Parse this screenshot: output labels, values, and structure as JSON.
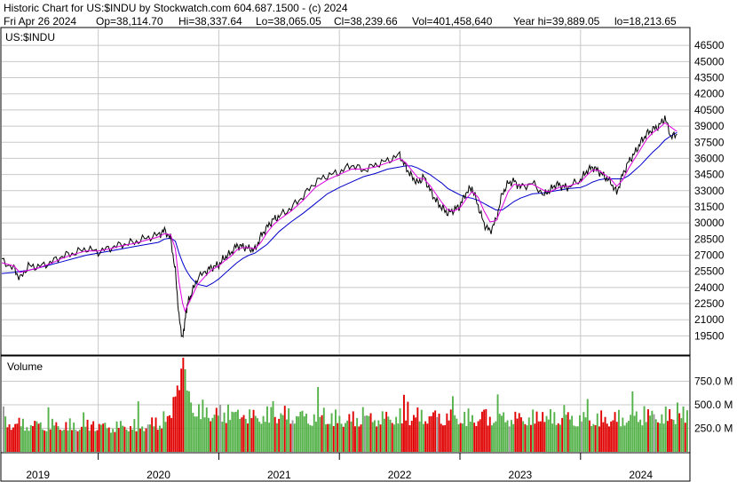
{
  "header": {
    "line1": "Historic Chart for US:$INDU by Stockwatch.com 604.687.1500 - (c) 2024",
    "line2_parts": [
      "Fri Apr 26 2024",
      "Op=38,114.70",
      "Hi=38,337.64",
      "Lo=38,065.05",
      "Cl=38,239.66",
      "Vol=401,458,640",
      "Year hi=39,889.05",
      "lo=18,213.65"
    ]
  },
  "colors": {
    "price": "#000000",
    "ma_short": "#e000e0",
    "ma_long": "#0000cc",
    "vol_up": "#55b24a",
    "vol_down": "#e00000",
    "vol_neutral": "#999999",
    "grid": "#c8c8c8"
  },
  "chart_data": [
    {
      "type": "line",
      "panel": "price",
      "label": "US:$INDU",
      "x_unit": "year",
      "xlim": [
        2018.7,
        2024.4
      ],
      "ylim": [
        17800,
        48000
      ],
      "y_ticks": [
        19500,
        21000,
        22500,
        24000,
        25500,
        27000,
        28500,
        30000,
        31500,
        33000,
        34500,
        36000,
        37500,
        39000,
        40500,
        42000,
        43500,
        45000,
        46500
      ],
      "x": [
        2018.7,
        2018.8,
        2018.85,
        2018.92,
        2019.0,
        2019.1,
        2019.2,
        2019.3,
        2019.4,
        2019.5,
        2019.6,
        2019.7,
        2019.8,
        2019.9,
        2020.0,
        2020.05,
        2020.1,
        2020.14,
        2020.17,
        2020.2,
        2020.22,
        2020.24,
        2020.27,
        2020.32,
        2020.4,
        2020.45,
        2020.5,
        2020.55,
        2020.6,
        2020.65,
        2020.7,
        2020.75,
        2020.8,
        2020.85,
        2020.9,
        2020.95,
        2021.0,
        2021.1,
        2021.2,
        2021.3,
        2021.4,
        2021.5,
        2021.6,
        2021.7,
        2021.8,
        2021.9,
        2022.0,
        2022.05,
        2022.1,
        2022.15,
        2022.2,
        2022.25,
        2022.3,
        2022.35,
        2022.4,
        2022.45,
        2022.5,
        2022.55,
        2022.6,
        2022.65,
        2022.7,
        2022.75,
        2022.8,
        2022.85,
        2022.9,
        2022.95,
        2023.0,
        2023.1,
        2023.2,
        2023.25,
        2023.3,
        2023.35,
        2023.4,
        2023.5,
        2023.55,
        2023.6,
        2023.65,
        2023.7,
        2023.75,
        2023.8,
        2023.85,
        2023.9,
        2023.95,
        2024.0,
        2024.05,
        2024.1,
        2024.15,
        2024.2,
        2024.25,
        2024.3
      ],
      "series": [
        {
          "key": "price",
          "values": [
            26500,
            25800,
            24800,
            26000,
            25900,
            26300,
            26900,
            27200,
            27600,
            27300,
            27700,
            28000,
            28200,
            28600,
            28900,
            29300,
            28600,
            25500,
            21200,
            19200,
            21000,
            22500,
            23300,
            24800,
            25600,
            25900,
            26100,
            26800,
            27200,
            27900,
            27800,
            27600,
            27500,
            28800,
            29600,
            30300,
            30600,
            31400,
            32500,
            33800,
            34400,
            34700,
            35400,
            34900,
            35400,
            35800,
            36300,
            35200,
            34300,
            33700,
            34300,
            33100,
            32100,
            31400,
            30900,
            31200,
            31600,
            32800,
            33300,
            31600,
            29900,
            29200,
            30300,
            32700,
            33700,
            33900,
            33300,
            33700,
            32600,
            33100,
            33600,
            33400,
            33300,
            34000,
            34800,
            35200,
            34800,
            34300,
            33800,
            32800,
            34500,
            35700,
            36500,
            37500,
            38300,
            38700,
            39000,
            39800,
            38000,
            38240
          ]
        },
        {
          "key": "ma_short",
          "values": [
            26300,
            26000,
            25400,
            25600,
            25800,
            26200,
            26700,
            27100,
            27400,
            27400,
            27600,
            27900,
            28100,
            28400,
            28700,
            29000,
            28900,
            27600,
            24500,
            22500,
            21800,
            22300,
            23000,
            24200,
            25200,
            25700,
            26000,
            26500,
            26900,
            27500,
            27700,
            27700,
            27600,
            28200,
            29100,
            29800,
            30300,
            31100,
            32100,
            33300,
            34000,
            34500,
            35000,
            35000,
            35200,
            35600,
            36000,
            35600,
            34900,
            34200,
            34100,
            33500,
            32700,
            31900,
            31200,
            31100,
            31400,
            32200,
            32900,
            32400,
            31100,
            30100,
            30200,
            31500,
            32900,
            33600,
            33500,
            33600,
            33000,
            32900,
            33200,
            33400,
            33400,
            33800,
            34400,
            34900,
            34900,
            34500,
            34100,
            33400,
            34000,
            35100,
            36000,
            36900,
            37800,
            38400,
            38800,
            39300,
            38900,
            38500
          ]
        },
        {
          "key": "ma_long",
          "values": [
            25300,
            25400,
            25500,
            25600,
            25800,
            26100,
            26400,
            26700,
            27000,
            27200,
            27400,
            27600,
            27800,
            28000,
            28200,
            28500,
            28600,
            28300,
            27200,
            26300,
            25800,
            25400,
            24900,
            24300,
            24100,
            24400,
            24800,
            25300,
            25800,
            26300,
            26700,
            27000,
            27200,
            27600,
            28000,
            28600,
            29200,
            30100,
            30900,
            31800,
            32700,
            33300,
            33800,
            34300,
            34600,
            35000,
            35200,
            35300,
            35300,
            35100,
            34800,
            34500,
            34100,
            33700,
            33200,
            32900,
            32600,
            32400,
            32300,
            32100,
            31800,
            31500,
            31200,
            31200,
            31600,
            32000,
            32300,
            32700,
            32800,
            32900,
            33000,
            33100,
            33200,
            33300,
            33500,
            33800,
            34000,
            34100,
            34100,
            34100,
            34100,
            34400,
            34900,
            35400,
            36000,
            36600,
            37100,
            37700,
            38100,
            38400
          ]
        }
      ]
    },
    {
      "type": "bar",
      "panel": "volume",
      "label": "Volume",
      "unit": "M",
      "ylim": [
        0,
        1000
      ],
      "y_ticks": [
        {
          "value": 250,
          "label": "250.0 M"
        },
        {
          "value": 500,
          "label": "500.0 M"
        },
        {
          "value": 750,
          "label": "750.0 M"
        }
      ],
      "x": [
        2018.7,
        2019.0,
        2019.3,
        2019.6,
        2019.9,
        2020.1,
        2020.15,
        2020.2,
        2020.25,
        2020.3,
        2020.5,
        2020.8,
        2021.0,
        2021.3,
        2021.6,
        2021.9,
        2022.2,
        2022.5,
        2022.8,
        2023.0,
        2023.3,
        2023.6,
        2023.9,
        2024.1,
        2024.3
      ],
      "values": [
        320,
        300,
        290,
        280,
        300,
        360,
        950,
        800,
        600,
        470,
        420,
        390,
        420,
        380,
        360,
        380,
        400,
        380,
        380,
        370,
        380,
        360,
        380,
        400,
        400
      ]
    }
  ],
  "x_axis": {
    "labels": [
      {
        "label": "2019",
        "x": 2019.0
      },
      {
        "label": "2020",
        "x": 2020.0
      },
      {
        "label": "2021",
        "x": 2021.0
      },
      {
        "label": "2022",
        "x": 2022.0
      },
      {
        "label": "2023",
        "x": 2023.0
      },
      {
        "label": "2024",
        "x": 2024.0
      }
    ],
    "year_boundaries": [
      2019.5,
      2020.5,
      2021.5,
      2022.5,
      2023.5
    ]
  }
}
